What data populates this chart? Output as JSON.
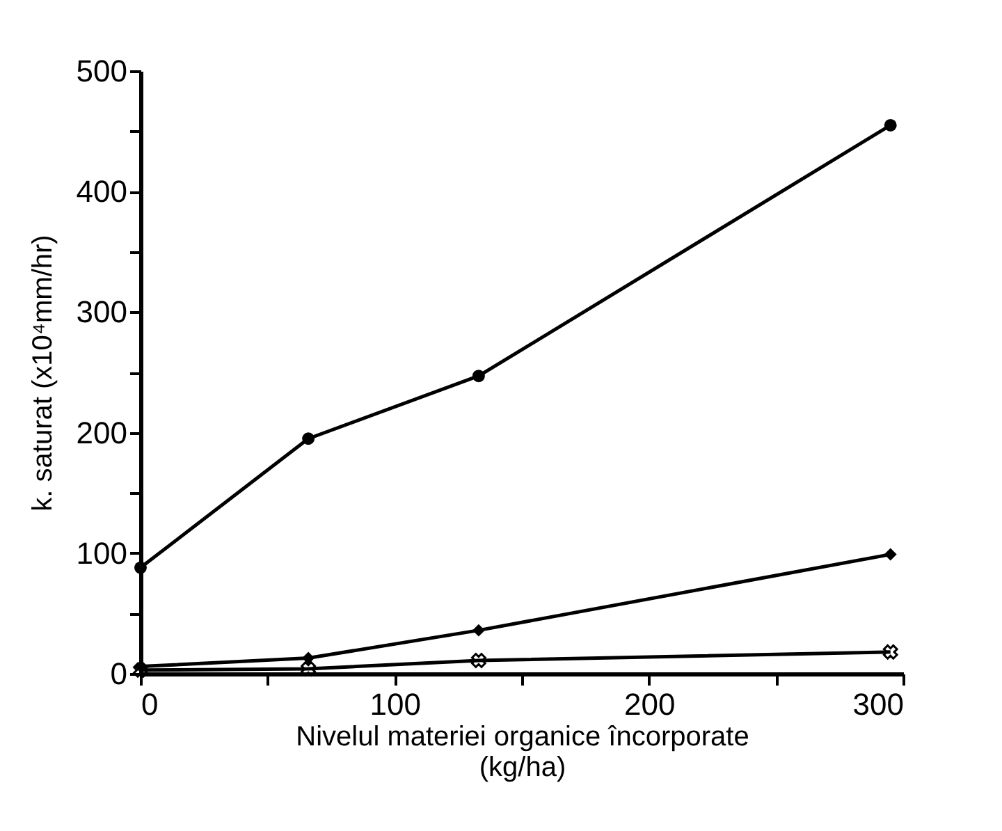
{
  "chart_data": {
    "type": "line",
    "xlabel": "Nivelul materiei organice încorporate\n(kg/ha)",
    "ylabel": "k. saturat (x10⁴mm/hr)",
    "xlim": [
      0,
      300
    ],
    "xticks": [
      0,
      {
        "value": 50,
        "label": null
      },
      100,
      {
        "value": 150,
        "label": null
      },
      200,
      {
        "value": 250,
        "label": null
      },
      300
    ],
    "ylim": [
      0,
      500
    ],
    "yticks": [
      0,
      {
        "value": 50,
        "label": null
      },
      100,
      {
        "value": 150,
        "label": null
      },
      200,
      {
        "value": 250,
        "label": null
      },
      300,
      {
        "value": 350,
        "label": null
      },
      400,
      {
        "value": 450,
        "label": null
      },
      500
    ],
    "grid": false,
    "line_style": "solid",
    "series": [
      {
        "color": "#000000",
        "marker": "circle",
        "x": [
          0,
          66,
          133,
          295
        ],
        "values": [
          88,
          195,
          247,
          455
        ]
      },
      {
        "color": "#000000",
        "marker": "diamond",
        "x": [
          0,
          66,
          133,
          295
        ],
        "values": [
          6,
          13,
          36,
          99
        ]
      },
      {
        "color": "#000000",
        "marker": "cross",
        "x": [
          0,
          66,
          133,
          295
        ],
        "values": [
          3,
          4,
          11,
          18
        ]
      }
    ]
  }
}
